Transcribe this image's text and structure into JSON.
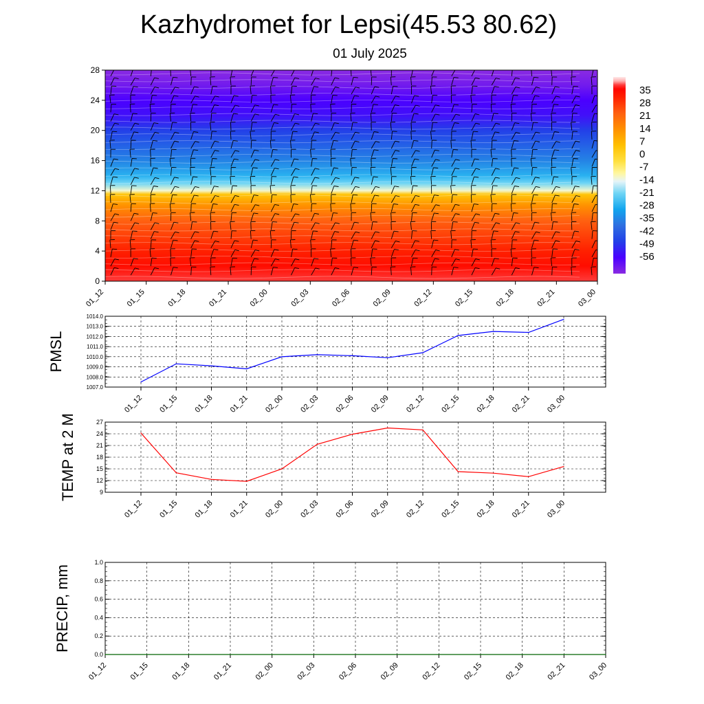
{
  "title": "Kazhydromet for Lepsi(45.53 80.62)",
  "subtitle": "01 July 2025",
  "time_labels": [
    "01_12",
    "01_15",
    "01_18",
    "01_21",
    "02_00",
    "02_03",
    "02_06",
    "02_09",
    "02_12",
    "02_15",
    "02_18",
    "02_21",
    "03_00"
  ],
  "chart_data": [
    {
      "type": "heatmap",
      "name": "temperature-cross-section",
      "x": [
        "01_12",
        "01_15",
        "01_18",
        "01_21",
        "02_00",
        "02_03",
        "02_06",
        "02_09",
        "02_12",
        "02_15",
        "02_18",
        "02_21",
        "03_00"
      ],
      "ylim": [
        0,
        28
      ],
      "yticks": [
        0,
        4,
        8,
        12,
        16,
        20,
        24,
        28
      ],
      "colorbar_labels": [
        "35",
        "28",
        "21",
        "14",
        "7",
        "0",
        "-7",
        "-14",
        "-21",
        "-28",
        "-35",
        "-42",
        "-49",
        "-56"
      ],
      "colorbar_range": [
        -60,
        38
      ],
      "overlay": "wind barbs",
      "color_profile": [
        {
          "level": 0,
          "value": 34
        },
        {
          "level": 2,
          "value": 31
        },
        {
          "level": 4,
          "value": 28
        },
        {
          "level": 6,
          "value": 24
        },
        {
          "level": 8,
          "value": 20
        },
        {
          "level": 10,
          "value": 12
        },
        {
          "level": 11.5,
          "value": 3
        },
        {
          "level": 12,
          "value": -12
        },
        {
          "level": 13,
          "value": -20
        },
        {
          "level": 14,
          "value": -26
        },
        {
          "level": 16,
          "value": -33
        },
        {
          "level": 20,
          "value": -44
        },
        {
          "level": 22,
          "value": -50
        },
        {
          "level": 24,
          "value": -52
        },
        {
          "level": 26,
          "value": -57
        },
        {
          "level": 28,
          "value": -60
        }
      ]
    },
    {
      "type": "line",
      "name": "pmsl",
      "ylabel": "PMSL",
      "categories": [
        "01_12",
        "01_15",
        "01_18",
        "01_21",
        "02_00",
        "02_03",
        "02_06",
        "02_09",
        "02_12",
        "02_15",
        "02_18",
        "02_21",
        "03_00"
      ],
      "values": [
        1007.5,
        1009.3,
        1009.1,
        1008.8,
        1010.0,
        1010.2,
        1010.1,
        1009.9,
        1010.4,
        1012.1,
        1012.5,
        1012.4,
        1013.7
      ],
      "ylim": [
        1007.0,
        1014.0
      ],
      "yticks": [
        "1007.0",
        "1008.0",
        "1009.0",
        "1010.0",
        "1011.0",
        "1012.0",
        "1013.0",
        "1014.0"
      ],
      "color": "#0000ff",
      "grid": true
    },
    {
      "type": "line",
      "name": "temp-2m",
      "ylabel": "TEMP at 2 M",
      "categories": [
        "01_12",
        "01_15",
        "01_18",
        "01_21",
        "02_00",
        "02_03",
        "02_06",
        "02_09",
        "02_12",
        "02_15",
        "02_18",
        "02_21",
        "03_00"
      ],
      "values": [
        24.2,
        14.0,
        12.3,
        11.8,
        15.0,
        21.3,
        23.9,
        25.5,
        25.0,
        14.3,
        13.9,
        13.0,
        15.6
      ],
      "ylim": [
        9,
        27
      ],
      "yticks": [
        "9",
        "12",
        "15",
        "18",
        "21",
        "24",
        "27"
      ],
      "color": "#ff0000",
      "grid": true
    },
    {
      "type": "line",
      "name": "precip",
      "ylabel": "PRECIP, mm",
      "categories": [
        "01_12",
        "01_15",
        "01_18",
        "01_21",
        "02_00",
        "02_03",
        "02_06",
        "02_09",
        "02_12",
        "02_15",
        "02_18",
        "02_21",
        "03_00"
      ],
      "values": [
        0,
        0,
        0,
        0,
        0,
        0,
        0,
        0,
        0,
        0,
        0,
        0,
        0
      ],
      "ylim": [
        0.0,
        1.0
      ],
      "yticks": [
        "0.0",
        "0.2",
        "0.4",
        "0.6",
        "0.8",
        "1.0"
      ],
      "color": "#006400",
      "grid": true
    }
  ]
}
